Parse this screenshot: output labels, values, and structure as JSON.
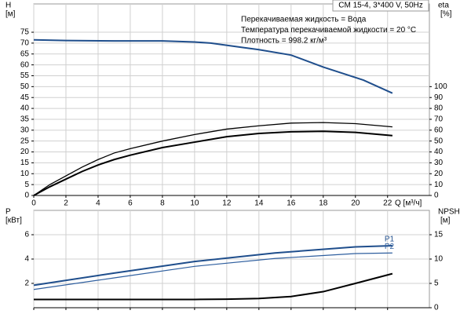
{
  "chart_data": [
    {
      "type": "line",
      "title": "CM 15-4, 3*400 V, 50Hz",
      "annotations": [
        "Перекачиваемая жидкость = Вода",
        "Температура перекачиваемой жидкости = 20 °C",
        "Плотность = 998.2 кг/м³"
      ],
      "ylabel": "H",
      "ylabel_unit": "[м]",
      "y2label": "eta",
      "y2label_unit": "[%]",
      "xlabel": "Q [м³/ч]",
      "xlim": [
        0,
        24.6
      ],
      "xticks": [
        0,
        2,
        4,
        6,
        8,
        10,
        12,
        14,
        16,
        18,
        20,
        22
      ],
      "xtick_labels": true,
      "ylim": [
        0,
        88
      ],
      "yticks": [
        0,
        5,
        10,
        15,
        20,
        25,
        30,
        35,
        40,
        45,
        50,
        55,
        60,
        65,
        70,
        75
      ],
      "y2lim": [
        0,
        176
      ],
      "y2ticks": [
        0,
        10,
        20,
        30,
        40,
        50,
        60,
        70,
        80,
        90,
        100
      ],
      "grid": true,
      "series": [
        {
          "color": "#1f4e8c",
          "line_width": 2,
          "x": [
            0,
            2,
            5,
            8,
            10,
            11,
            13,
            14,
            16,
            18,
            20.5,
            22.3
          ],
          "values": [
            71.5,
            71.2,
            71,
            71,
            70.5,
            70,
            68,
            67,
            64.5,
            59,
            53,
            47
          ]
        },
        {
          "color": "#000000",
          "line_width": 1.3,
          "axis": "y2",
          "x": [
            0,
            1,
            2,
            3,
            4,
            5,
            6,
            8,
            10,
            12,
            14,
            16,
            18,
            20,
            22.3
          ],
          "values": [
            0,
            10,
            18,
            26,
            33,
            39,
            43,
            50,
            56,
            61,
            64,
            66.5,
            67,
            66,
            63
          ]
        },
        {
          "color": "#000000",
          "line_width": 2,
          "axis": "y2",
          "x": [
            0,
            1,
            2,
            3,
            4,
            5,
            6,
            8,
            10,
            12,
            14,
            16,
            18,
            20,
            22.3
          ],
          "values": [
            0,
            8,
            15,
            22,
            28,
            33,
            37,
            44,
            49,
            54,
            57,
            58.5,
            59,
            58,
            55
          ]
        }
      ]
    },
    {
      "type": "line",
      "ylabel": "P",
      "ylabel_unit": "[кВт]",
      "y2label": "NPSH",
      "y2label_unit": "[м]",
      "xlim": [
        0,
        24.6
      ],
      "xticks": [
        0,
        2,
        4,
        6,
        8,
        10,
        12,
        14,
        16,
        18,
        20,
        22
      ],
      "xtick_labels": false,
      "ylim": [
        0,
        8
      ],
      "yticks": [
        2,
        4,
        6
      ],
      "y2lim": [
        0,
        20
      ],
      "y2ticks": [
        0,
        5,
        10,
        15
      ],
      "grid": true,
      "series": [
        {
          "name": "P1",
          "color": "#1f4e8c",
          "line_width": 2,
          "x": [
            0,
            5,
            10,
            15,
            20,
            22.3
          ],
          "values": [
            1.85,
            2.85,
            3.8,
            4.5,
            5.0,
            5.1
          ]
        },
        {
          "name": "P2",
          "color": "#2f5f9f",
          "line_width": 1.2,
          "x": [
            0,
            5,
            10,
            15,
            20,
            22.3
          ],
          "values": [
            1.5,
            2.45,
            3.4,
            4.05,
            4.45,
            4.5
          ]
        },
        {
          "color": "#000000",
          "line_width": 2,
          "axis": "y2",
          "x": [
            0,
            5,
            10,
            12,
            14,
            16,
            18,
            20,
            22.3
          ],
          "values": [
            1.7,
            1.7,
            1.7,
            1.75,
            1.9,
            2.3,
            3.3,
            5,
            7
          ]
        }
      ]
    }
  ]
}
